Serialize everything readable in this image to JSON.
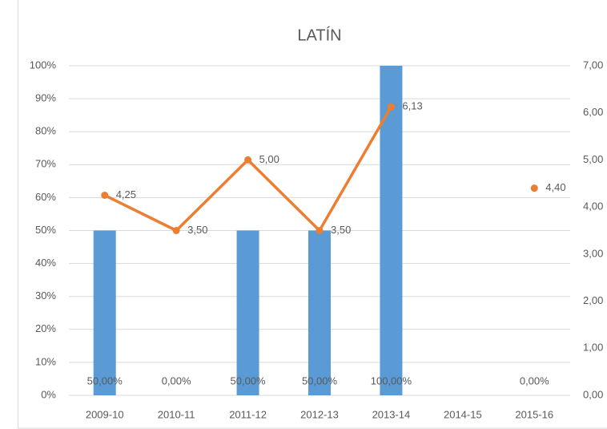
{
  "chart_data": {
    "type": "bar",
    "title": "LATÍN",
    "categories": [
      "2009-10",
      "2010-11",
      "2011-12",
      "2012-13",
      "2013-14",
      "2014-15",
      "2015-16"
    ],
    "series": [
      {
        "type": "bar",
        "color": "#5b9bd5",
        "values": [
          50,
          0,
          50,
          50,
          100,
          null,
          0
        ],
        "value_labels": [
          "50,00%",
          "0,00%",
          "50,00%",
          "50,00%",
          "100,00%",
          null,
          "0,00%"
        ]
      },
      {
        "type": "line",
        "axis": "y2",
        "color": "#ed7d31",
        "values": [
          4.25,
          3.5,
          5.0,
          3.5,
          6.13,
          null,
          4.4
        ],
        "value_labels": [
          "4,25",
          "3,50",
          "5,00",
          "3,50",
          "6,13",
          null,
          "4,40"
        ]
      }
    ],
    "ylim": [
      0,
      100
    ],
    "yticks": [
      {
        "value": 0,
        "label": "0%"
      },
      {
        "value": 10,
        "label": "10%"
      },
      {
        "value": 20,
        "label": "20%"
      },
      {
        "value": 30,
        "label": "30%"
      },
      {
        "value": 40,
        "label": "40%"
      },
      {
        "value": 50,
        "label": "50%"
      },
      {
        "value": 60,
        "label": "60%"
      },
      {
        "value": 70,
        "label": "70%"
      },
      {
        "value": 80,
        "label": "80%"
      },
      {
        "value": 90,
        "label": "90%"
      },
      {
        "value": 100,
        "label": "100%"
      }
    ],
    "y2lim": [
      0,
      7
    ],
    "y2ticks": [
      {
        "value": 0,
        "label": "0,00"
      },
      {
        "value": 1,
        "label": "1,00"
      },
      {
        "value": 2,
        "label": "2,00"
      },
      {
        "value": 3,
        "label": "3,00"
      },
      {
        "value": 4,
        "label": "4,00"
      },
      {
        "value": 5,
        "label": "5,00"
      },
      {
        "value": 6,
        "label": "6,00"
      },
      {
        "value": 7,
        "label": "7,00"
      }
    ],
    "grid": true
  }
}
